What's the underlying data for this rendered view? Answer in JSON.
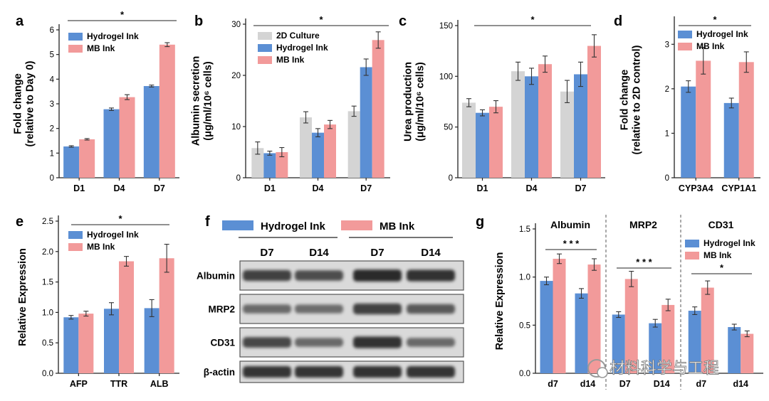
{
  "colors": {
    "hydrogel": "#5b8fd4",
    "mb": "#f29a9a",
    "culture2d": "#d4d4d4",
    "axis": "#222222",
    "errorbar": "#333333",
    "band": "#1e1e1e"
  },
  "panel_letters": [
    "a",
    "b",
    "c",
    "d",
    "e",
    "f",
    "g"
  ],
  "chart_data": [
    {
      "id": "a",
      "type": "bar",
      "ylabel_lines": [
        "Fold change",
        "(relative to Day 0)"
      ],
      "categories": [
        "D1",
        "D4",
        "D7"
      ],
      "yticks": [
        0,
        1,
        2,
        3,
        4,
        5,
        6
      ],
      "ylim": [
        0,
        6
      ],
      "series": [
        {
          "name": "Hydrogel Ink",
          "color_key": "hydrogel",
          "values": [
            1.27,
            2.78,
            3.72
          ],
          "errors": [
            0.03,
            0.05,
            0.04
          ]
        },
        {
          "name": "MB Ink",
          "color_key": "mb",
          "values": [
            1.56,
            3.27,
            5.4
          ],
          "errors": [
            0.03,
            0.1,
            0.08
          ]
        }
      ],
      "significance": "*",
      "legend": "top-left"
    },
    {
      "id": "b",
      "type": "bar",
      "ylabel_lines": [
        "Albumin secretion",
        "(μg/ml/10⁶ cells)"
      ],
      "categories": [
        "D1",
        "D4",
        "D7"
      ],
      "yticks": [
        0,
        10,
        20,
        30
      ],
      "ylim": [
        0,
        30
      ],
      "series": [
        {
          "name": "2D Culture",
          "color_key": "culture2d",
          "values": [
            5.8,
            11.8,
            13.0
          ],
          "errors": [
            1.2,
            1.1,
            1.0
          ]
        },
        {
          "name": "Hydrogel Ink",
          "color_key": "hydrogel",
          "values": [
            4.8,
            8.8,
            21.6
          ],
          "errors": [
            0.4,
            0.8,
            1.6
          ]
        },
        {
          "name": "MB Ink",
          "color_key": "mb",
          "values": [
            5.0,
            10.4,
            26.9
          ],
          "errors": [
            0.9,
            0.8,
            1.6
          ]
        }
      ],
      "significance": "*",
      "legend": "top-left"
    },
    {
      "id": "c",
      "type": "bar",
      "ylabel_lines": [
        "Urea production",
        "(μg/ml/10⁶ cells)"
      ],
      "categories": [
        "D1",
        "D4",
        "D7"
      ],
      "yticks": [
        0,
        50,
        100,
        150
      ],
      "ylim": [
        0,
        150
      ],
      "series": [
        {
          "name": "2D Culture",
          "color_key": "culture2d",
          "values": [
            74,
            105,
            85
          ],
          "errors": [
            4,
            9,
            11
          ]
        },
        {
          "name": "Hydrogel Ink",
          "color_key": "hydrogel",
          "values": [
            64,
            100,
            102
          ],
          "errors": [
            3,
            8,
            12
          ]
        },
        {
          "name": "MB Ink",
          "color_key": "mb",
          "values": [
            70,
            112,
            130
          ],
          "errors": [
            6,
            8,
            11
          ]
        }
      ],
      "significance": "*",
      "legend": "none"
    },
    {
      "id": "d",
      "type": "bar",
      "ylabel_lines": [
        "Fold change",
        "(relative to 2D control)"
      ],
      "categories": [
        "CYP3A4",
        "CYP1A1"
      ],
      "yticks": [
        0,
        1,
        2,
        3
      ],
      "ylim": [
        0,
        3.5
      ],
      "series": [
        {
          "name": "Hydrogel Ink",
          "color_key": "hydrogel",
          "values": [
            2.05,
            1.68
          ],
          "errors": [
            0.13,
            0.11
          ]
        },
        {
          "name": "MB Ink",
          "color_key": "mb",
          "values": [
            2.63,
            2.6
          ],
          "errors": [
            0.3,
            0.23
          ]
        }
      ],
      "significance": "*",
      "legend": "top-left"
    },
    {
      "id": "e",
      "type": "bar",
      "ylabel_lines": [
        "Relative Expression"
      ],
      "categories": [
        "AFP",
        "TTR",
        "ALB"
      ],
      "yticks": [
        "0.0",
        "0.5",
        "1.0",
        "1.5",
        "2.0",
        "2.5"
      ],
      "ylim": [
        0,
        2.5
      ],
      "series": [
        {
          "name": "Hydrogel Ink",
          "color_key": "hydrogel",
          "values": [
            0.92,
            1.06,
            1.07
          ],
          "errors": [
            0.03,
            0.1,
            0.14
          ]
        },
        {
          "name": "MB Ink",
          "color_key": "mb",
          "values": [
            0.98,
            1.84,
            1.89
          ],
          "errors": [
            0.04,
            0.08,
            0.23
          ]
        }
      ],
      "significance": "*",
      "legend": "top-left"
    },
    {
      "id": "g",
      "type": "bar",
      "ylabel_lines": [
        "Relative Expression"
      ],
      "yticks": [
        "0.0",
        "0.5",
        "1.0",
        "1.5"
      ],
      "ylim": [
        0,
        1.5
      ],
      "groups": [
        {
          "title": "Albumin",
          "categories": [
            "d7",
            "d14"
          ],
          "significance": "* * *",
          "series": [
            {
              "name": "Hydrogel Ink",
              "color_key": "hydrogel",
              "values": [
                0.96,
                0.83
              ],
              "errors": [
                0.04,
                0.05
              ]
            },
            {
              "name": "MB Ink",
              "color_key": "mb",
              "values": [
                1.19,
                1.13
              ],
              "errors": [
                0.05,
                0.06
              ]
            }
          ]
        },
        {
          "title": "MRP2",
          "categories": [
            "D7",
            "D14"
          ],
          "significance": "* * *",
          "series": [
            {
              "name": "Hydrogel Ink",
              "color_key": "hydrogel",
              "values": [
                0.61,
                0.52
              ],
              "errors": [
                0.03,
                0.04
              ]
            },
            {
              "name": "MB Ink",
              "color_key": "mb",
              "values": [
                0.98,
                0.71
              ],
              "errors": [
                0.08,
                0.06
              ]
            }
          ]
        },
        {
          "title": "CD31",
          "categories": [
            "d7",
            "d14"
          ],
          "significance": "*",
          "series": [
            {
              "name": "Hydrogel Ink",
              "color_key": "hydrogel",
              "values": [
                0.65,
                0.48
              ],
              "errors": [
                0.04,
                0.03
              ]
            },
            {
              "name": "MB Ink",
              "color_key": "mb",
              "values": [
                0.89,
                0.41
              ],
              "errors": [
                0.07,
                0.03
              ]
            }
          ]
        }
      ],
      "legend": "top-right"
    }
  ],
  "blot": {
    "id": "f",
    "legend": [
      {
        "name": "Hydrogel Ink",
        "color_key": "hydrogel"
      },
      {
        "name": "MB Ink",
        "color_key": "mb"
      }
    ],
    "lanes": [
      "D7",
      "D14",
      "D7",
      "D14"
    ],
    "rows": [
      {
        "label": "Albumin",
        "intensities": [
          0.8,
          0.72,
          0.98,
          0.92
        ]
      },
      {
        "label": "MRP2",
        "intensities": [
          0.5,
          0.48,
          0.8,
          0.62
        ]
      },
      {
        "label": "CD31",
        "intensities": [
          0.75,
          0.5,
          0.92,
          0.5
        ]
      },
      {
        "label": "β-actin",
        "intensities": [
          0.9,
          0.9,
          0.92,
          0.9
        ]
      }
    ]
  },
  "watermark": {
    "text": "材料科学与工程"
  }
}
